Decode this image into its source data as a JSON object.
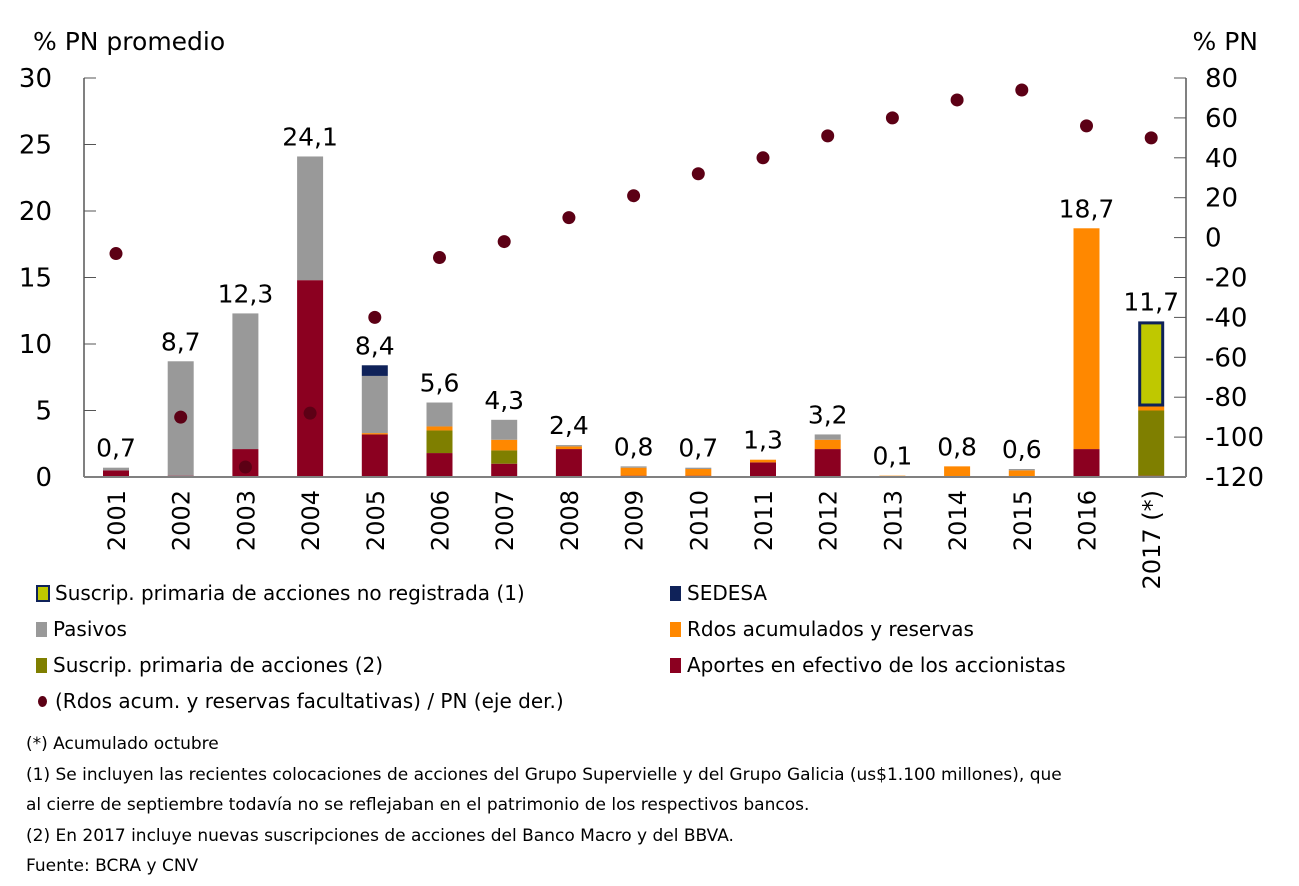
{
  "chart_data": {
    "type": "bar",
    "subtype": "stacked bar with scatter overlay (secondary axis)",
    "left_axis_title": "% PN promedio",
    "right_axis_title": "% PN",
    "ylim": [
      0,
      30
    ],
    "yticks": [
      0,
      5,
      10,
      15,
      20,
      25,
      30
    ],
    "y2lim": [
      -120,
      80
    ],
    "y2ticks": [
      -120,
      -100,
      -80,
      -60,
      -40,
      -20,
      0,
      20,
      40,
      60,
      80
    ],
    "categories": [
      "2001",
      "2002",
      "2003",
      "2004",
      "2005",
      "2006",
      "2007",
      "2008",
      "2009",
      "2010",
      "2011",
      "2012",
      "2013",
      "2014",
      "2015",
      "2016",
      "2017 (*)"
    ],
    "series": [
      {
        "key": "aportes",
        "name": "Aportes en efectivo de los accionistas",
        "color": "#8b0020",
        "values": [
          0.5,
          0.1,
          2.1,
          14.8,
          3.2,
          1.8,
          1.0,
          2.1,
          0.1,
          0.1,
          1.1,
          2.1,
          0.0,
          0.05,
          0.0,
          2.1,
          0.1
        ]
      },
      {
        "key": "suscrip",
        "name": "Suscrip. primaria de acciones (2)",
        "color": "#7f7f00",
        "values": [
          0,
          0,
          0,
          0,
          0,
          1.7,
          1.0,
          0,
          0,
          0,
          0,
          0,
          0,
          0,
          0,
          0,
          4.9
        ]
      },
      {
        "key": "rdos",
        "name": "Rdos acumulados y reservas",
        "color": "#ff8800",
        "values": [
          0,
          0,
          0,
          0,
          0.1,
          0.3,
          0.8,
          0.2,
          0.6,
          0.5,
          0.2,
          0.7,
          0.1,
          0.75,
          0.5,
          16.6,
          0.3
        ]
      },
      {
        "key": "pasivos",
        "name": "Pasivos",
        "color": "#999999",
        "values": [
          0.2,
          8.6,
          10.2,
          9.3,
          4.3,
          1.8,
          1.5,
          0.1,
          0.1,
          0.1,
          0,
          0.4,
          0,
          0,
          0.1,
          0,
          0
        ]
      },
      {
        "key": "sedesa",
        "name": "SEDESA",
        "color": "#0f2259",
        "values": [
          0,
          0,
          0,
          0,
          0.8,
          0,
          0,
          0,
          0,
          0,
          0,
          0,
          0,
          0,
          0,
          0,
          0
        ]
      },
      {
        "key": "noreg",
        "name": "Suscrip. primaria de acciones no registrada (1)",
        "color": "#bfc800",
        "outline": "#0f2259",
        "values": [
          0,
          0,
          0,
          0,
          0,
          0,
          0,
          0,
          0,
          0,
          0,
          0,
          0,
          0,
          0,
          0,
          6.4
        ]
      }
    ],
    "totals_labels": [
      "0,7",
      "8,7",
      "12,3",
      "24,1",
      "8,4",
      "5,6",
      "4,3",
      "2,4",
      "0,8",
      "0,7",
      "1,3",
      "3,2",
      "0,1",
      "0,8",
      "0,6",
      "18,7",
      "11,7"
    ],
    "totals": [
      0.7,
      8.7,
      12.3,
      24.1,
      8.4,
      5.6,
      4.3,
      2.4,
      0.8,
      0.7,
      1.3,
      3.2,
      0.1,
      0.8,
      0.6,
      18.7,
      11.7
    ],
    "scatter": {
      "name": "(Rdos acum. y reservas facultativas) / PN (eje der.)",
      "axis": "right",
      "color": "#5c0015",
      "values": [
        -8,
        -90,
        -115,
        -88,
        -40,
        -10,
        -2,
        10,
        21,
        32,
        40,
        51,
        60,
        69,
        74,
        56,
        50
      ]
    },
    "legend_position": "bottom"
  },
  "legend": {
    "items": [
      {
        "label": "Suscrip. primaria de acciones no registrada (1)",
        "color": "#bfc800",
        "outline": "#0f2259"
      },
      {
        "label": "SEDESA",
        "color": "#0f2259"
      },
      {
        "label": "Pasivos",
        "color": "#999999"
      },
      {
        "label": "Rdos acumulados y reservas",
        "color": "#ff8800"
      },
      {
        "label": "Suscrip. primaria de acciones (2)",
        "color": "#7f7f00"
      },
      {
        "label": "Aportes en efectivo de los accionistas",
        "color": "#8b0020"
      },
      {
        "label": "(Rdos acum. y reservas facultativas) / PN (eje der.)",
        "color": "#5c0015"
      }
    ]
  },
  "notes": [
    "(*) Acumulado octubre",
    "(1) Se incluyen las recientes colocaciones de acciones del Grupo Supervielle y del Grupo Galicia (us$1.100 millones), que",
    "al cierre de septiembre todavía no se reflejaban en el patrimonio de los respectivos bancos.",
    "(2) En 2017 incluye nuevas suscripciones de acciones del Banco Macro y del BBVA.",
    "Fuente: BCRA y CNV"
  ]
}
